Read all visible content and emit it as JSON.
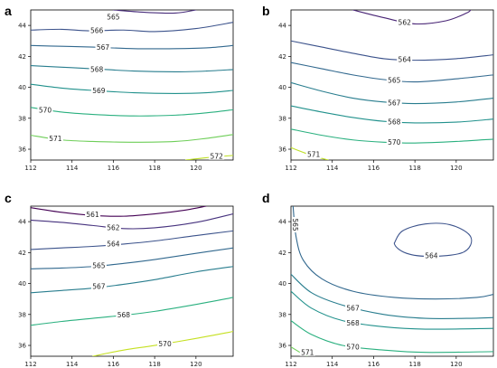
{
  "chart_data": [
    {
      "type": "line",
      "panel": "a",
      "xlim": [
        112,
        121.8
      ],
      "ylim": [
        35.3,
        45
      ],
      "xticks": [
        112,
        114,
        116,
        118,
        120
      ],
      "yticks": [
        36,
        38,
        40,
        42,
        44
      ],
      "grid": false,
      "series": [
        {
          "level": "565",
          "color": "#472c7a",
          "points": [
            [
              116.0,
              45.0
            ],
            [
              117.5,
              44.85
            ],
            [
              119.0,
              44.8
            ],
            [
              120.0,
              45.0
            ]
          ],
          "label_at": [
            116.0,
            44.55
          ]
        },
        {
          "level": "566",
          "color": "#3b528b",
          "points": [
            [
              112.0,
              43.7
            ],
            [
              113.5,
              43.75
            ],
            [
              114.8,
              43.65
            ],
            [
              116.5,
              43.7
            ],
            [
              118.0,
              43.6
            ],
            [
              120.0,
              43.8
            ],
            [
              121.8,
              44.2
            ]
          ],
          "label_at": [
            115.2,
            43.65
          ]
        },
        {
          "level": "567",
          "color": "#31688e",
          "points": [
            [
              112.0,
              42.7
            ],
            [
              113.5,
              42.65
            ],
            [
              115.0,
              42.6
            ],
            [
              117.0,
              42.5
            ],
            [
              119.0,
              42.5
            ],
            [
              120.5,
              42.55
            ],
            [
              121.8,
              42.7
            ]
          ],
          "label_at": [
            115.5,
            42.58
          ]
        },
        {
          "level": "568",
          "color": "#287d8e",
          "points": [
            [
              112.0,
              41.4
            ],
            [
              113.5,
              41.3
            ],
            [
              115.0,
              41.2
            ],
            [
              117.0,
              41.05
            ],
            [
              119.0,
              41.0
            ],
            [
              120.5,
              41.05
            ],
            [
              121.8,
              41.15
            ]
          ],
          "label_at": [
            115.2,
            41.15
          ]
        },
        {
          "level": "569",
          "color": "#21918c",
          "points": [
            [
              112.0,
              40.2
            ],
            [
              113.5,
              39.95
            ],
            [
              115.0,
              39.8
            ],
            [
              117.0,
              39.65
            ],
            [
              119.0,
              39.6
            ],
            [
              120.5,
              39.65
            ],
            [
              121.8,
              39.8
            ]
          ],
          "label_at": [
            115.3,
            39.78
          ]
        },
        {
          "level": "570",
          "color": "#2ab07f",
          "points": [
            [
              112.0,
              38.7
            ],
            [
              113.5,
              38.4
            ],
            [
              115.0,
              38.25
            ],
            [
              117.0,
              38.15
            ],
            [
              119.0,
              38.2
            ],
            [
              120.5,
              38.35
            ],
            [
              121.8,
              38.55
            ]
          ],
          "label_at": [
            112.7,
            38.52
          ]
        },
        {
          "level": "571",
          "color": "#6ece58",
          "points": [
            [
              112.0,
              36.9
            ],
            [
              113.5,
              36.6
            ],
            [
              115.0,
              36.5
            ],
            [
              117.0,
              36.45
            ],
            [
              119.0,
              36.5
            ],
            [
              120.5,
              36.7
            ],
            [
              121.8,
              36.95
            ]
          ],
          "label_at": [
            113.2,
            36.68
          ]
        },
        {
          "level": "572",
          "color": "#bddf26",
          "points": [
            [
              119.5,
              35.3
            ],
            [
              120.5,
              35.45
            ],
            [
              121.8,
              35.6
            ]
          ],
          "label_at": [
            121.0,
            35.55
          ]
        }
      ]
    },
    {
      "type": "line",
      "panel": "b",
      "xlim": [
        112,
        121.8
      ],
      "ylim": [
        35.3,
        45
      ],
      "xticks": [
        112,
        114,
        116,
        118,
        120
      ],
      "yticks": [
        36,
        38,
        40,
        42,
        44
      ],
      "grid": false,
      "series": [
        {
          "level": "562",
          "color": "#482475",
          "points": [
            [
              115.0,
              45.0
            ],
            [
              116.5,
              44.5
            ],
            [
              118.0,
              44.1
            ],
            [
              119.5,
              44.3
            ],
            [
              120.5,
              44.8
            ],
            [
              120.7,
              45.0
            ]
          ],
          "label_at": [
            117.5,
            44.2
          ]
        },
        {
          "level": "564",
          "color": "#3b528b",
          "points": [
            [
              112.0,
              43.0
            ],
            [
              113.5,
              42.6
            ],
            [
              115.0,
              42.2
            ],
            [
              116.5,
              41.85
            ],
            [
              118.0,
              41.75
            ],
            [
              120.0,
              41.85
            ],
            [
              121.8,
              42.1
            ]
          ],
          "label_at": [
            117.5,
            41.8
          ]
        },
        {
          "level": "565",
          "color": "#31688e",
          "points": [
            [
              112.0,
              41.6
            ],
            [
              113.5,
              41.2
            ],
            [
              115.0,
              40.8
            ],
            [
              116.5,
              40.5
            ],
            [
              118.0,
              40.35
            ],
            [
              120.0,
              40.55
            ],
            [
              121.8,
              40.8
            ]
          ],
          "label_at": [
            117.0,
            40.45
          ]
        },
        {
          "level": "567",
          "color": "#287d8e",
          "points": [
            [
              112.0,
              40.3
            ],
            [
              113.5,
              39.75
            ],
            [
              115.0,
              39.3
            ],
            [
              116.5,
              39.05
            ],
            [
              118.0,
              38.95
            ],
            [
              120.0,
              39.05
            ],
            [
              121.8,
              39.3
            ]
          ],
          "label_at": [
            117.0,
            39.0
          ]
        },
        {
          "level": "568",
          "color": "#21918c",
          "points": [
            [
              112.0,
              38.8
            ],
            [
              113.5,
              38.4
            ],
            [
              115.0,
              38.05
            ],
            [
              116.5,
              37.8
            ],
            [
              118.0,
              37.7
            ],
            [
              120.0,
              37.75
            ],
            [
              121.8,
              37.95
            ]
          ],
          "label_at": [
            117.0,
            37.75
          ]
        },
        {
          "level": "570",
          "color": "#2ab07f",
          "points": [
            [
              112.0,
              37.3
            ],
            [
              113.5,
              36.9
            ],
            [
              115.0,
              36.6
            ],
            [
              116.5,
              36.45
            ],
            [
              118.0,
              36.4
            ],
            [
              120.0,
              36.5
            ],
            [
              121.8,
              36.65
            ]
          ],
          "label_at": [
            117.0,
            36.45
          ]
        },
        {
          "level": "571",
          "color": "#bddf26",
          "points": [
            [
              112.0,
              36.1
            ],
            [
              113.0,
              35.6
            ],
            [
              113.8,
              35.3
            ]
          ],
          "label_at": [
            113.1,
            35.65
          ]
        }
      ]
    },
    {
      "type": "line",
      "panel": "c",
      "xlim": [
        112,
        121.8
      ],
      "ylim": [
        35.3,
        45
      ],
      "xticks": [
        112,
        114,
        116,
        118,
        120
      ],
      "yticks": [
        36,
        38,
        40,
        42,
        44
      ],
      "grid": false,
      "series": [
        {
          "level": "561",
          "color": "#440154",
          "points": [
            [
              112.0,
              44.9
            ],
            [
              113.5,
              44.6
            ],
            [
              115.0,
              44.4
            ],
            [
              116.5,
              44.35
            ],
            [
              118.0,
              44.5
            ],
            [
              119.5,
              44.75
            ],
            [
              120.5,
              45.0
            ]
          ],
          "label_at": [
            115.0,
            44.45
          ]
        },
        {
          "level": "562",
          "color": "#46327e",
          "points": [
            [
              112.0,
              44.1
            ],
            [
              113.5,
              43.95
            ],
            [
              115.0,
              43.75
            ],
            [
              116.5,
              43.55
            ],
            [
              118.0,
              43.6
            ],
            [
              120.0,
              43.95
            ],
            [
              121.8,
              44.5
            ]
          ],
          "label_at": [
            116.0,
            43.6
          ]
        },
        {
          "level": "564",
          "color": "#3b528b",
          "points": [
            [
              112.0,
              42.2
            ],
            [
              113.5,
              42.3
            ],
            [
              115.0,
              42.4
            ],
            [
              116.5,
              42.55
            ],
            [
              118.0,
              42.75
            ],
            [
              120.0,
              43.1
            ],
            [
              121.8,
              43.4
            ]
          ],
          "label_at": [
            116.0,
            42.55
          ]
        },
        {
          "level": "565",
          "color": "#31688e",
          "points": [
            [
              112.0,
              40.95
            ],
            [
              113.5,
              41.0
            ],
            [
              115.0,
              41.1
            ],
            [
              116.5,
              41.3
            ],
            [
              118.0,
              41.55
            ],
            [
              120.0,
              41.95
            ],
            [
              121.8,
              42.3
            ]
          ],
          "label_at": [
            115.3,
            41.15
          ]
        },
        {
          "level": "567",
          "color": "#287d8e",
          "points": [
            [
              112.0,
              39.4
            ],
            [
              113.5,
              39.55
            ],
            [
              115.0,
              39.7
            ],
            [
              116.5,
              39.95
            ],
            [
              118.0,
              40.25
            ],
            [
              120.0,
              40.75
            ],
            [
              121.8,
              41.1
            ]
          ],
          "label_at": [
            115.3,
            39.8
          ]
        },
        {
          "level": "568",
          "color": "#2ab07f",
          "points": [
            [
              112.0,
              37.3
            ],
            [
              113.5,
              37.55
            ],
            [
              115.0,
              37.75
            ],
            [
              116.5,
              37.95
            ],
            [
              118.0,
              38.2
            ],
            [
              120.0,
              38.65
            ],
            [
              121.8,
              39.1
            ]
          ],
          "label_at": [
            116.5,
            37.95
          ]
        },
        {
          "level": "570",
          "color": "#c5e021",
          "points": [
            [
              115.0,
              35.3
            ],
            [
              116.5,
              35.7
            ],
            [
              118.0,
              36.0
            ],
            [
              120.0,
              36.45
            ],
            [
              121.8,
              36.9
            ]
          ],
          "label_at": [
            118.5,
            36.1
          ]
        }
      ]
    },
    {
      "type": "line",
      "panel": "d",
      "xlim": [
        112,
        121.8
      ],
      "ylim": [
        35.3,
        45
      ],
      "xticks": [
        112,
        114,
        116,
        118,
        120
      ],
      "yticks": [
        36,
        38,
        40,
        42,
        44
      ],
      "grid": false,
      "series": [
        {
          "level": "564",
          "color": "#3b528b",
          "closed": true,
          "points": [
            [
              117.0,
              42.6
            ],
            [
              117.4,
              43.4
            ],
            [
              118.5,
              43.85
            ],
            [
              119.7,
              43.8
            ],
            [
              120.6,
              43.2
            ],
            [
              120.7,
              42.5
            ],
            [
              120.2,
              41.95
            ],
            [
              118.8,
              41.75
            ],
            [
              117.6,
              41.95
            ]
          ],
          "label_at": [
            118.8,
            41.8
          ]
        },
        {
          "level": "565",
          "color": "#31688e",
          "points": [
            [
              112.1,
              45.0
            ],
            [
              112.25,
              43.0
            ],
            [
              112.6,
              41.5
            ],
            [
              113.5,
              40.3
            ],
            [
              115.0,
              39.5
            ],
            [
              117.0,
              39.1
            ],
            [
              119.0,
              39.0
            ],
            [
              121.0,
              39.1
            ],
            [
              121.8,
              39.3
            ]
          ],
          "label_at": [
            112.2,
            43.8
          ],
          "label_rotate": 90
        },
        {
          "level": "567",
          "color": "#287d8e",
          "points": [
            [
              112.0,
              40.6
            ],
            [
              113.0,
              39.4
            ],
            [
              114.5,
              38.6
            ],
            [
              116.5,
              38.0
            ],
            [
              118.5,
              37.75
            ],
            [
              120.5,
              37.75
            ],
            [
              121.8,
              37.8
            ]
          ],
          "label_at": [
            115.0,
            38.4
          ]
        },
        {
          "level": "568",
          "color": "#21918c",
          "points": [
            [
              112.0,
              39.5
            ],
            [
              113.0,
              38.4
            ],
            [
              114.5,
              37.6
            ],
            [
              116.5,
              37.2
            ],
            [
              118.5,
              37.05
            ],
            [
              121.8,
              37.1
            ]
          ],
          "label_at": [
            115.0,
            37.45
          ]
        },
        {
          "level": "570",
          "color": "#2ab07f",
          "points": [
            [
              112.0,
              37.6
            ],
            [
              113.0,
              36.7
            ],
            [
              114.5,
              36.0
            ],
            [
              116.5,
              35.7
            ],
            [
              118.5,
              35.55
            ],
            [
              121.8,
              35.6
            ]
          ],
          "label_at": [
            115.0,
            35.9
          ]
        },
        {
          "level": "571",
          "color": "#6ece58",
          "points": [
            [
              112.0,
              35.9
            ],
            [
              112.5,
              35.5
            ],
            [
              112.8,
              35.3
            ]
          ],
          "label_at": [
            112.8,
            35.55
          ]
        }
      ]
    }
  ]
}
